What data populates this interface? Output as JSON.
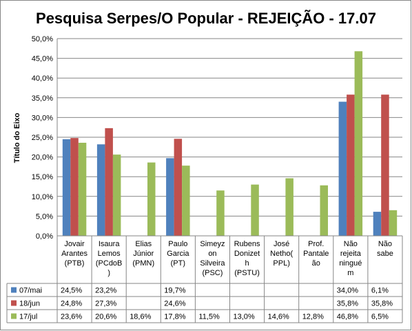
{
  "chart_data": {
    "type": "bar",
    "title": "Pesquisa Serpes/O Popular - REJEIÇÃO - 17.07",
    "ylabel": "Título do Eixo",
    "ylim": [
      0,
      50
    ],
    "ytick_labels": [
      "0,0%",
      "5,0%",
      "10,0%",
      "15,0%",
      "20,0%",
      "25,0%",
      "30,0%",
      "35,0%",
      "40,0%",
      "45,0%",
      "50,0%"
    ],
    "grid": true,
    "legend": "data-table-left",
    "categories": [
      [
        "Jovair",
        "Arantes",
        "(PTB)"
      ],
      [
        "Isaura",
        "Lemos",
        "(PCdoB",
        ")"
      ],
      [
        "Elias",
        "Júnior",
        "(PMN)"
      ],
      [
        "Paulo",
        "Garcia",
        "(PT)"
      ],
      [
        "Simeyz",
        "on",
        "Silveira",
        "(PSC)"
      ],
      [
        "Rubens",
        "Donizet",
        "h",
        "(PSTU)"
      ],
      [
        "José",
        "Netho(",
        "PPL)"
      ],
      [
        "Prof.",
        "Pantale",
        "ão"
      ],
      [
        "Não",
        "rejeita",
        "ningué",
        "m"
      ],
      [
        "Não",
        "sabe"
      ]
    ],
    "series": [
      {
        "name": "07/mai",
        "color": "#4F81BD",
        "values": [
          24.5,
          23.2,
          null,
          19.7,
          null,
          null,
          null,
          null,
          34.0,
          6.1
        ],
        "labels": [
          "24,5%",
          "23,2%",
          "",
          "19,7%",
          "",
          "",
          "",
          "",
          "34,0%",
          "6,1%"
        ]
      },
      {
        "name": "18/jun",
        "color": "#C0504D",
        "values": [
          24.8,
          27.3,
          null,
          24.6,
          null,
          null,
          null,
          null,
          35.8,
          35.8
        ],
        "labels": [
          "24,8%",
          "27,3%",
          "",
          "24,6%",
          "",
          "",
          "",
          "",
          "35,8%",
          "35,8%"
        ]
      },
      {
        "name": "17/jul",
        "color": "#9BBB59",
        "values": [
          23.6,
          20.6,
          18.6,
          17.8,
          11.5,
          13.0,
          14.6,
          12.8,
          46.8,
          6.5
        ],
        "labels": [
          "23,6%",
          "20,6%",
          "18,6%",
          "17,8%",
          "11,5%",
          "13,0%",
          "14,6%",
          "12,8%",
          "46,8%",
          "6,5%"
        ]
      }
    ]
  }
}
